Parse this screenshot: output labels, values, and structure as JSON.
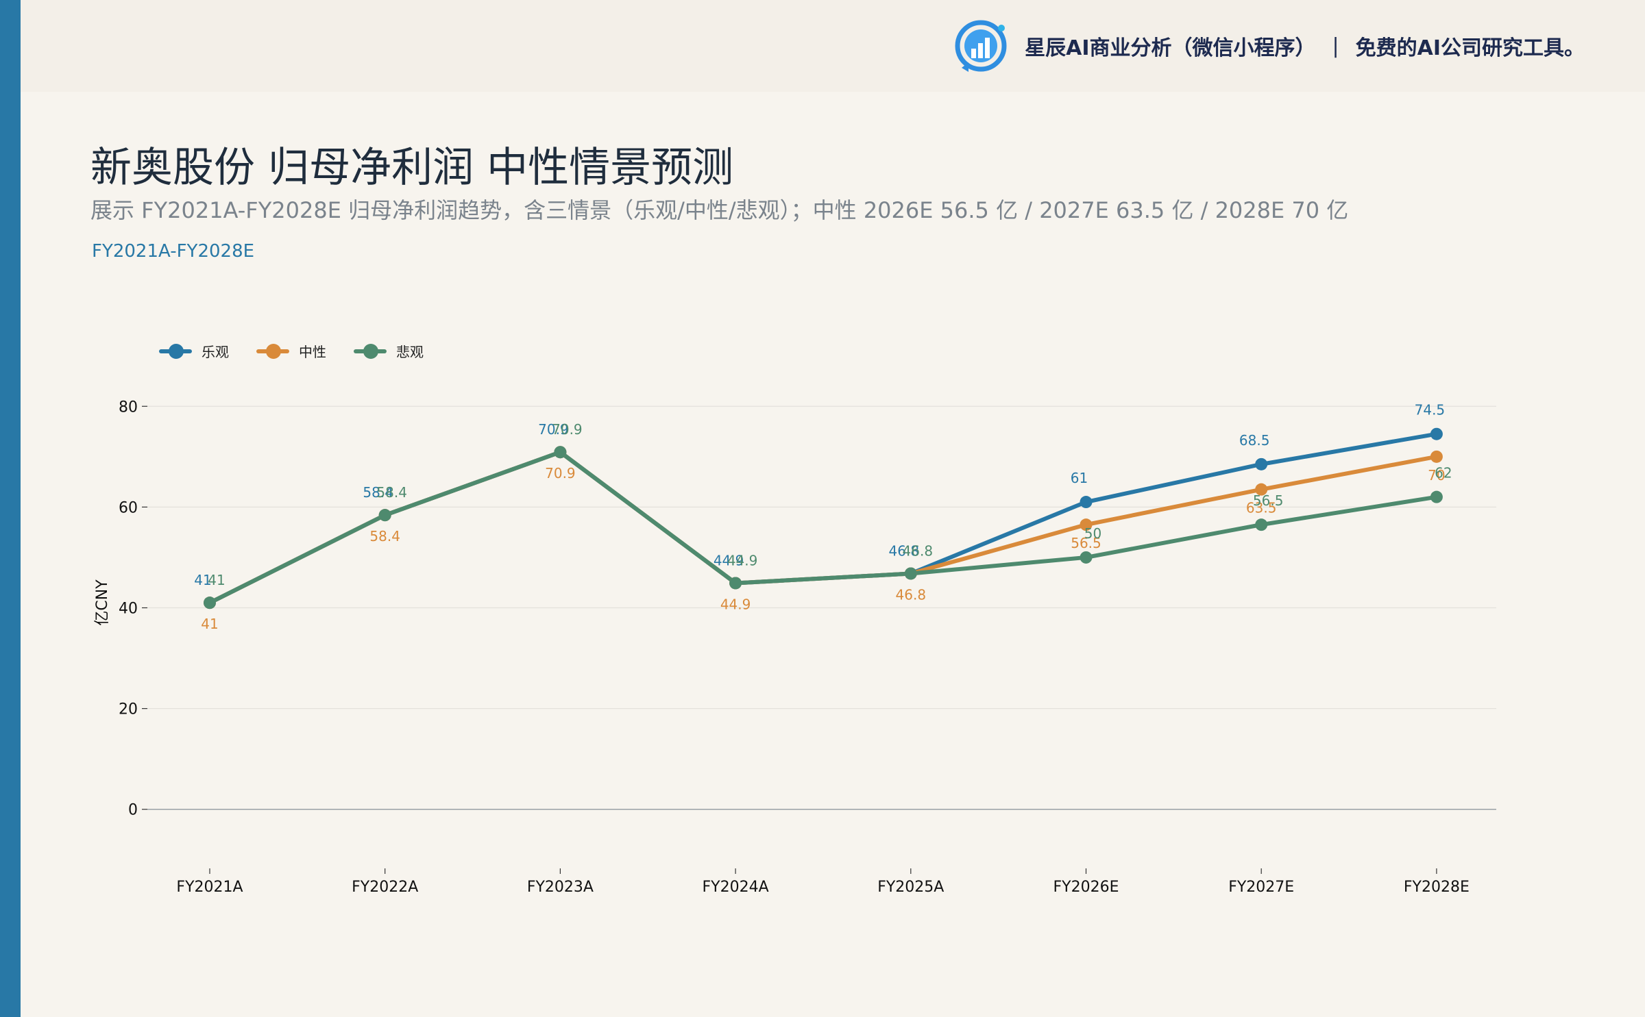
{
  "brand": {
    "name": "星辰AI商业分析（微信小程序）",
    "separator": "|",
    "tagline": "免费的AI公司研究工具。",
    "logo_icon": "bar-chart-circle-icon"
  },
  "title": "新奥股份 归母净利润 中性情景预测",
  "subtitle": "展示 FY2021A-FY2028E 归母净利润趋势，含三情景（乐观/中性/悲观）；中性 2026E 56.5 亿 / 2027E 63.5 亿 / 2028E 70 亿",
  "range_tag": "FY2021A-FY2028E",
  "colors": {
    "accent": "#2878a6",
    "optimistic": "#2878a6",
    "neutral": "#d98a3a",
    "pessimistic": "#4e8a6e",
    "background": "#f7f4ee"
  },
  "chart_data": {
    "type": "line",
    "title": "",
    "xlabel": "",
    "ylabel": "亿CNY",
    "categories": [
      "FY2021A",
      "FY2022A",
      "FY2023A",
      "FY2024A",
      "FY2025A",
      "FY2026E",
      "FY2027E",
      "FY2028E"
    ],
    "ylim": [
      -12,
      92
    ],
    "yticks": [
      0,
      20,
      40,
      60,
      80
    ],
    "grid": true,
    "legend_position": "top-left",
    "series": [
      {
        "name": "乐观",
        "color": "#2878a6",
        "values": [
          41,
          58.4,
          70.9,
          44.9,
          46.8,
          61,
          68.5,
          74.5
        ]
      },
      {
        "name": "中性",
        "color": "#d98a3a",
        "values": [
          41,
          58.4,
          70.9,
          44.9,
          46.8,
          56.5,
          63.5,
          70
        ]
      },
      {
        "name": "悲观",
        "color": "#4e8a6e",
        "values": [
          41,
          58.4,
          70.9,
          44.9,
          46.8,
          50,
          56.5,
          62
        ]
      }
    ]
  }
}
